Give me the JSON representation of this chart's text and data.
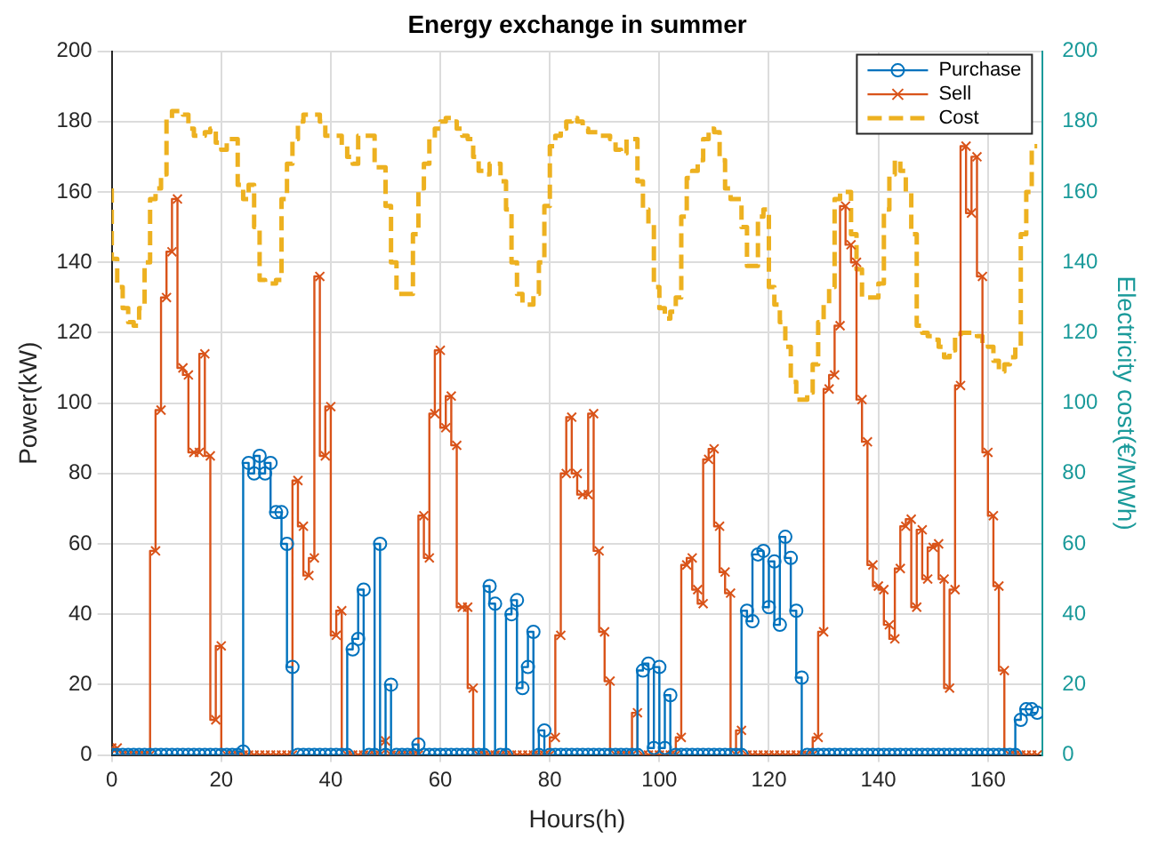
{
  "chart_data": {
    "type": "step",
    "title": "Energy exchange in summer",
    "xlabel": "Hours(h)",
    "ylabel": "Power(kW)",
    "y2label": "Electricity cost(€/MWh)",
    "x": [
      0,
      1,
      2,
      3,
      4,
      5,
      6,
      7,
      8,
      9,
      10,
      11,
      12,
      13,
      14,
      15,
      16,
      17,
      18,
      19,
      20,
      21,
      22,
      23,
      24,
      25,
      26,
      27,
      28,
      29,
      30,
      31,
      32,
      33,
      34,
      35,
      36,
      37,
      38,
      39,
      40,
      41,
      42,
      43,
      44,
      45,
      46,
      47,
      48,
      49,
      50,
      51,
      52,
      53,
      54,
      55,
      56,
      57,
      58,
      59,
      60,
      61,
      62,
      63,
      64,
      65,
      66,
      67,
      68,
      69,
      70,
      71,
      72,
      73,
      74,
      75,
      76,
      77,
      78,
      79,
      80,
      81,
      82,
      83,
      84,
      85,
      86,
      87,
      88,
      89,
      90,
      91,
      92,
      93,
      94,
      95,
      96,
      97,
      98,
      99,
      100,
      101,
      102,
      103,
      104,
      105,
      106,
      107,
      108,
      109,
      110,
      111,
      112,
      113,
      114,
      115,
      116,
      117,
      118,
      119,
      120,
      121,
      122,
      123,
      124,
      125,
      126,
      127,
      128,
      129,
      130,
      131,
      132,
      133,
      134,
      135,
      136,
      137,
      138,
      139,
      140,
      141,
      142,
      143,
      144,
      145,
      146,
      147,
      148,
      149,
      150,
      151,
      152,
      153,
      154,
      155,
      156,
      157,
      158,
      159,
      160,
      161,
      162,
      163,
      164,
      165,
      166,
      167,
      168,
      169
    ],
    "series": [
      {
        "name": "Purchase",
        "color": "#0072bd",
        "marker": "circle",
        "values": [
          0,
          0,
          0,
          0,
          0,
          0,
          0,
          0,
          0,
          0,
          0,
          0,
          0,
          0,
          0,
          0,
          0,
          0,
          0,
          0,
          0,
          0,
          0,
          0,
          1,
          83,
          80,
          85,
          80,
          83,
          69,
          69,
          60,
          25,
          0,
          0,
          0,
          0,
          0,
          0,
          0,
          0,
          0,
          0,
          30,
          33,
          47,
          0,
          0,
          60,
          0,
          20,
          0,
          0,
          0,
          0,
          3,
          0,
          0,
          0,
          0,
          0,
          0,
          0,
          0,
          0,
          0,
          0,
          0,
          48,
          43,
          0,
          0,
          40,
          44,
          19,
          25,
          35,
          0,
          7,
          0,
          0,
          0,
          0,
          0,
          0,
          0,
          0,
          0,
          0,
          0,
          0,
          0,
          0,
          0,
          0,
          0,
          24,
          26,
          2,
          25,
          2,
          17,
          0,
          0,
          0,
          0,
          0,
          0,
          0,
          0,
          0,
          0,
          0,
          0,
          0,
          41,
          38,
          57,
          58,
          42,
          55,
          37,
          62,
          56,
          41,
          22,
          0,
          0,
          0,
          0,
          0,
          0,
          0,
          0,
          0,
          0,
          0,
          0,
          0,
          0,
          0,
          0,
          0,
          0,
          0,
          0,
          0,
          0,
          0,
          0,
          0,
          0,
          0,
          0,
          0,
          0,
          0,
          0,
          0,
          0,
          0,
          0,
          0,
          0,
          0,
          10,
          13,
          13,
          12
        ]
      },
      {
        "name": "Sell",
        "color": "#d95319",
        "marker": "cross",
        "values": [
          2,
          2,
          0,
          0,
          0,
          0,
          0,
          0,
          58,
          98,
          130,
          143,
          158,
          110,
          108,
          86,
          86,
          114,
          85,
          10,
          31,
          0,
          0,
          0,
          0,
          0,
          0,
          0,
          0,
          0,
          0,
          0,
          0,
          0,
          78,
          65,
          51,
          56,
          136,
          85,
          99,
          34,
          41,
          0,
          0,
          0,
          0,
          0,
          0,
          0,
          4,
          0,
          0,
          0,
          0,
          0,
          0,
          68,
          56,
          97,
          115,
          93,
          102,
          88,
          42,
          42,
          19,
          0,
          0,
          0,
          0,
          0,
          0,
          0,
          0,
          0,
          0,
          0,
          0,
          0,
          0,
          5,
          34,
          80,
          96,
          80,
          74,
          74,
          97,
          58,
          35,
          21,
          0,
          0,
          0,
          0,
          12,
          0,
          0,
          0,
          0,
          0,
          0,
          0,
          5,
          54,
          56,
          47,
          43,
          84,
          87,
          65,
          52,
          46,
          0,
          7,
          0,
          0,
          0,
          0,
          0,
          0,
          0,
          0,
          0,
          0,
          0,
          0,
          0,
          5,
          35,
          104,
          108,
          122,
          156,
          145,
          140,
          101,
          89,
          54,
          48,
          47,
          37,
          33,
          53,
          65,
          67,
          42,
          64,
          50,
          59,
          60,
          50,
          19,
          47,
          105,
          173,
          154,
          170,
          136,
          86,
          68,
          48,
          24,
          0,
          0,
          0,
          0,
          0,
          0
        ]
      },
      {
        "name": "Cost",
        "color": "#edb120",
        "axis": "y2",
        "marker": "none",
        "line_style": "dashed",
        "values": [
          161,
          141,
          133,
          127,
          123,
          122,
          127,
          140,
          158,
          161,
          165,
          181,
          183,
          183,
          182,
          178,
          176,
          176,
          177,
          178,
          174,
          172,
          175,
          175,
          162,
          158,
          162,
          150,
          135,
          134,
          134,
          135,
          158,
          168,
          175,
          180,
          182,
          182,
          182,
          180,
          176,
          176,
          176,
          173,
          170,
          168,
          176,
          176,
          176,
          167,
          167,
          156,
          140,
          131,
          131,
          131,
          148,
          161,
          168,
          175,
          178,
          180,
          181,
          180,
          178,
          176,
          175,
          170,
          166,
          165,
          168,
          168,
          163,
          155,
          140,
          131,
          128,
          128,
          131,
          140,
          156,
          173,
          176,
          178,
          180,
          181,
          180,
          178,
          177,
          177,
          176,
          176,
          175,
          172,
          171,
          175,
          175,
          163,
          155,
          151,
          133,
          127,
          124,
          126,
          130,
          153,
          164,
          166,
          169,
          175,
          178,
          177,
          169,
          161,
          158,
          158,
          150,
          139,
          139,
          153,
          155,
          133,
          128,
          123,
          116,
          106,
          101,
          101,
          103,
          111,
          123,
          128,
          133,
          158,
          160,
          160,
          148,
          138,
          130,
          130,
          130,
          134,
          155,
          165,
          169,
          166,
          160,
          148,
          122,
          120,
          119,
          118,
          116,
          113,
          115,
          119,
          120,
          120,
          120,
          119,
          117,
          116,
          112,
          109,
          111,
          113,
          116,
          148,
          160,
          173
        ]
      }
    ],
    "xlim": [
      0,
      170
    ],
    "xticks": [
      0,
      20,
      40,
      60,
      80,
      100,
      120,
      140,
      160
    ],
    "ylim": [
      0,
      200
    ],
    "yticks": [
      0,
      20,
      40,
      60,
      80,
      100,
      120,
      140,
      160,
      180,
      200
    ],
    "y2lim": [
      0,
      200
    ],
    "y2ticks": [
      0,
      20,
      40,
      60,
      80,
      100,
      120,
      140,
      160,
      180,
      200
    ],
    "grid": true,
    "legend": "top right"
  }
}
